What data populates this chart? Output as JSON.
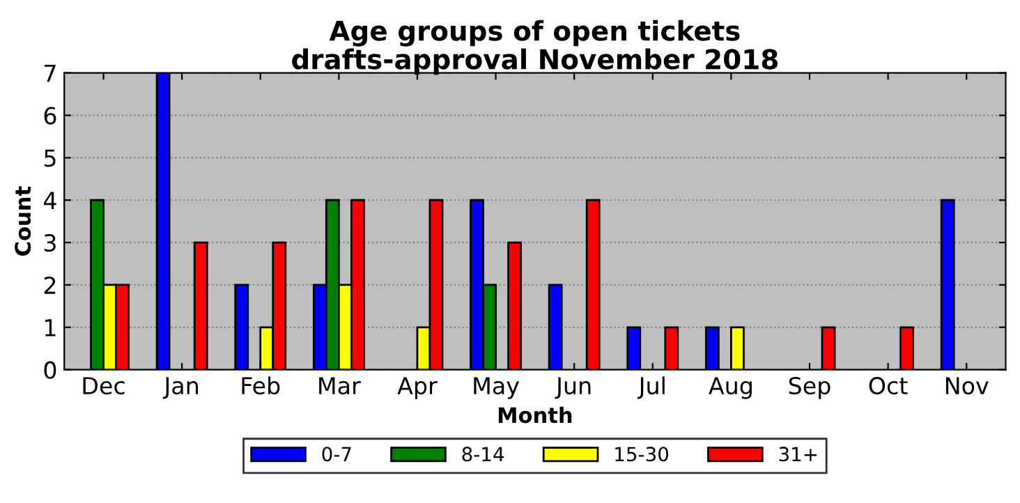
{
  "chart_data": {
    "type": "bar",
    "title": "Age groups of open tickets\ndrafts-approval November 2018",
    "xlabel": "Month",
    "ylabel": "Count",
    "categories": [
      "Dec",
      "Jan",
      "Feb",
      "Mar",
      "Apr",
      "May",
      "Jun",
      "Jul",
      "Aug",
      "Sep",
      "Oct",
      "Nov"
    ],
    "series": [
      {
        "name": "0-7",
        "color": "#0000ff",
        "values": [
          0,
          7,
          2,
          2,
          0,
          4,
          2,
          1,
          1,
          0,
          0,
          4
        ]
      },
      {
        "name": "8-14",
        "color": "#008000",
        "values": [
          4,
          0,
          0,
          4,
          0,
          2,
          0,
          0,
          0,
          0,
          0,
          0
        ]
      },
      {
        "name": "15-30",
        "color": "#ffff00",
        "values": [
          2,
          0,
          1,
          2,
          1,
          0,
          0,
          0,
          1,
          0,
          0,
          0
        ]
      },
      {
        "name": "31+",
        "color": "#ff0000",
        "values": [
          2,
          3,
          3,
          4,
          4,
          3,
          4,
          1,
          0,
          1,
          1,
          0
        ]
      }
    ],
    "ylim": [
      0,
      7
    ],
    "yticks": [
      0,
      1,
      2,
      3,
      4,
      5,
      6,
      7
    ],
    "grid": "y",
    "legend": "bottom"
  }
}
